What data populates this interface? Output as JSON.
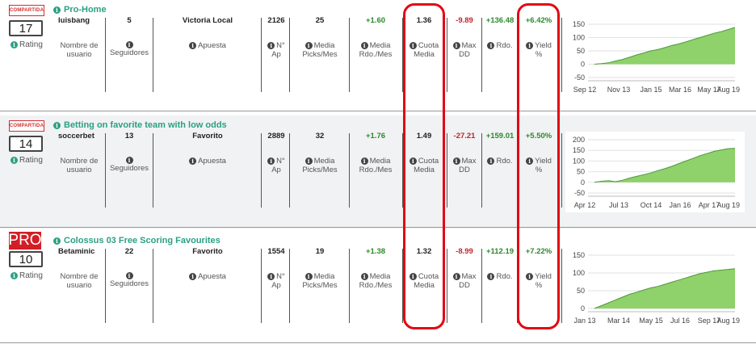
{
  "colors": {
    "accent": "#2aa083",
    "positive": "#2a8a2a",
    "negative": "#c0262b",
    "pro": "#d21f26",
    "area": "#8fd16a"
  },
  "labels": {
    "rating": "Rating",
    "usuario": [
      "Nombre de",
      "usuario"
    ],
    "seguidores": "Seguidores",
    "apuesta": "Apuesta",
    "nap": [
      "N°",
      "Ap"
    ],
    "picks": [
      "Media",
      "Picks/Mes"
    ],
    "rdomes": [
      "Media",
      "Rdo./Mes"
    ],
    "cuota": [
      "Cuota",
      "Media"
    ],
    "maxdd": [
      "Max",
      "DD"
    ],
    "rdo": "Rdo.",
    "yield": [
      "Yield",
      "%"
    ]
  },
  "tipsters": [
    {
      "badge": "COMPARTIDA",
      "badge_type": "comp",
      "title": "Pro-Home",
      "rating": "17",
      "usuario": "luisbang",
      "seguidores": "5",
      "apuesta": "Victoria Local",
      "nap": "2126",
      "picks": "25",
      "rdomes": "+1.60",
      "cuota": "1.36",
      "maxdd": "-9.89",
      "rdo": "+136.48",
      "yield": "+6.42%",
      "chart_data": {
        "type": "area",
        "y_ticks": [
          "150",
          "100",
          "50",
          "0",
          "-50"
        ],
        "ylim": [
          -50,
          150
        ],
        "x_ticks": [
          "Sep 12",
          "Nov 13",
          "Jan 15",
          "Mar 16",
          "May 17",
          "Aug 19"
        ],
        "values": [
          0,
          2,
          5,
          12,
          18,
          26,
          35,
          42,
          50,
          55,
          62,
          70,
          76,
          84,
          92,
          100,
          108,
          116,
          122,
          130,
          138
        ]
      }
    },
    {
      "badge": "COMPARTIDA",
      "badge_type": "comp",
      "title": "Betting on favorite team with low odds",
      "rating": "14",
      "usuario": "soccerbet",
      "seguidores": "13",
      "apuesta": "Favorito",
      "nap": "2889",
      "picks": "32",
      "rdomes": "+1.76",
      "cuota": "1.49",
      "maxdd": "-27.21",
      "rdo": "+159.01",
      "yield": "+5.50%",
      "chart_data": {
        "type": "area",
        "y_ticks": [
          "200",
          "150",
          "100",
          "50",
          "0",
          "-50"
        ],
        "ylim": [
          -50,
          200
        ],
        "x_ticks": [
          "Apr 12",
          "Jul 13",
          "Oct 14",
          "Jan 16",
          "Apr 17",
          "Aug 19"
        ],
        "values": [
          0,
          5,
          8,
          3,
          10,
          20,
          28,
          36,
          44,
          55,
          64,
          75,
          88,
          100,
          112,
          125,
          135,
          145,
          152,
          158,
          160
        ]
      }
    },
    {
      "badge": "PRO",
      "badge_type": "pro",
      "title": "Colossus 03 Free Scoring Favourites",
      "rating": "10",
      "usuario": "Betaminic",
      "seguidores": "22",
      "apuesta": "Favorito",
      "nap": "1554",
      "picks": "19",
      "rdomes": "+1.38",
      "cuota": "1.32",
      "maxdd": "-8.99",
      "rdo": "+112.19",
      "yield": "+7.22%",
      "chart_data": {
        "type": "area",
        "y_ticks": [
          "150",
          "100",
          "50",
          "0"
        ],
        "ylim": [
          0,
          150
        ],
        "x_ticks": [
          "Jan 13",
          "Mar 14",
          "May 15",
          "Jul 16",
          "Sep 17",
          "Aug 19"
        ],
        "values": [
          0,
          8,
          16,
          24,
          32,
          40,
          46,
          52,
          58,
          62,
          68,
          74,
          80,
          86,
          92,
          98,
          102,
          106,
          108,
          110,
          112
        ]
      }
    }
  ]
}
